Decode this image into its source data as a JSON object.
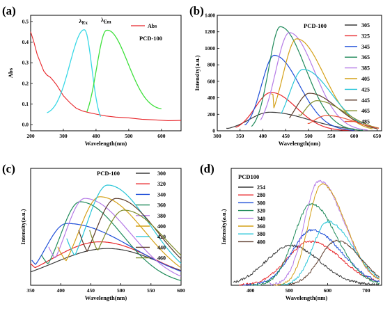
{
  "figure": {
    "panels": [
      "(a)",
      "(b)",
      "(c)",
      "(d)"
    ]
  },
  "chart_data": [
    {
      "id": "a",
      "type": "line",
      "panel_label": "(a)",
      "title": "",
      "sample_label": "PCD-100",
      "xlabel": "Wavelength(nm)",
      "ylabel": "Abs",
      "xlim": [
        200,
        660
      ],
      "ylim": [
        -0.03,
        0.53
      ],
      "xticks": [
        200,
        300,
        400,
        500,
        600
      ],
      "yticks": [
        0.0,
        0.1,
        0.2,
        0.3,
        0.4,
        0.5
      ],
      "ytick_labels": [
        "0.0",
        "0.1",
        "0.2",
        "0.3",
        "0.4",
        "0.5"
      ],
      "legend": [
        "Abs"
      ],
      "legend_position": "top-right",
      "annotations": [
        {
          "text": "λ",
          "sub": "Ex",
          "color": "#000000",
          "x": 365,
          "y": 0.49
        },
        {
          "text": "λ",
          "sub": "Em",
          "color": "#000000",
          "x": 432,
          "y": 0.495
        }
      ],
      "series": [
        {
          "name": "Abs",
          "color": "#e8252a",
          "kind": "abs",
          "points": [
            [
              200,
              0.45
            ],
            [
              210,
              0.4
            ],
            [
              220,
              0.34
            ],
            [
              230,
              0.3
            ],
            [
              240,
              0.26
            ],
            [
              250,
              0.24
            ],
            [
              260,
              0.23
            ],
            [
              270,
              0.21
            ],
            [
              280,
              0.19
            ],
            [
              290,
              0.165
            ],
            [
              300,
              0.14
            ],
            [
              320,
              0.105
            ],
            [
              340,
              0.08
            ],
            [
              360,
              0.066
            ],
            [
              380,
              0.057
            ],
            [
              400,
              0.05
            ],
            [
              430,
              0.043
            ],
            [
              460,
              0.037
            ],
            [
              500,
              0.031
            ],
            [
              540,
              0.026
            ],
            [
              580,
              0.022
            ],
            [
              620,
              0.02
            ],
            [
              660,
              0.019
            ]
          ]
        },
        {
          "kind": "ex",
          "color": "#39d8e6",
          "center": 365,
          "amp": 0.47,
          "x_start": 250,
          "x_end": 415,
          "base": 0.04,
          "w_left": 45,
          "w_right": 22
        },
        {
          "kind": "em",
          "color": "#3ee03b",
          "center": 432,
          "amp": 0.475,
          "x_start": 372,
          "x_end": 600,
          "base": 0.06,
          "w_left": 30,
          "w_right": 65
        }
      ]
    },
    {
      "id": "b",
      "type": "line",
      "panel_label": "(b)",
      "title": "",
      "legend_title": "PCD-100",
      "xlabel": "Wavelength(nm)",
      "ylabel": "Intensity(a.u.)",
      "xlim": [
        300,
        660
      ],
      "ylim": [
        0,
        1400
      ],
      "xticks": [
        300,
        350,
        400,
        450,
        500,
        550,
        600,
        650
      ],
      "yticks": [
        0,
        200,
        400,
        600,
        800,
        1000,
        1200,
        1400
      ],
      "legend_position": "top-right",
      "series": [
        {
          "name": "305",
          "color": "#3a3a3a",
          "start": 320,
          "end": 600,
          "peak": 415,
          "amp": 225,
          "wl": 45,
          "wr": 85,
          "base": 20
        },
        {
          "name": "325",
          "color": "#e8252a",
          "start": 340,
          "end": 600,
          "peak": 418,
          "amp": 465,
          "wl": 35,
          "wr": 55,
          "base": 30
        },
        {
          "name": "345",
          "color": "#1f4fd8",
          "start": 360,
          "end": 600,
          "peak": 425,
          "amp": 915,
          "wl": 28,
          "wr": 55,
          "base": 50
        },
        {
          "name": "365",
          "color": "#1f8a5a",
          "start": 375,
          "end": 620,
          "peak": 438,
          "amp": 1262,
          "wl": 25,
          "wr": 55,
          "base": 30
        },
        {
          "name": "385",
          "color": "#b57be6",
          "start": 395,
          "end": 630,
          "peak": 458,
          "amp": 1190,
          "wl": 30,
          "wr": 55,
          "base": 60
        },
        {
          "name": "405",
          "color": "#d4a017",
          "start": 418,
          "end": 640,
          "peak": 474,
          "amp": 1115,
          "wl": 30,
          "wr": 60,
          "base": 300
        },
        {
          "name": "425",
          "color": "#27c5d8",
          "start": 440,
          "end": 640,
          "peak": 488,
          "amp": 745,
          "wl": 30,
          "wr": 62,
          "base": 120
        },
        {
          "name": "445",
          "color": "#5a3a2a",
          "start": 458,
          "end": 650,
          "peak": 502,
          "amp": 455,
          "wl": 30,
          "wr": 62,
          "base": 60
        },
        {
          "name": "465",
          "color": "#7f8c2a",
          "start": 478,
          "end": 655,
          "peak": 518,
          "amp": 365,
          "wl": 30,
          "wr": 62,
          "base": 130
        },
        {
          "name": "485",
          "color": "#e8563a",
          "start": 498,
          "end": 655,
          "peak": 540,
          "amp": 185,
          "wl": 32,
          "wr": 60,
          "base": 60
        }
      ]
    },
    {
      "id": "c",
      "type": "line",
      "panel_label": "(c)",
      "title": "",
      "legend_title": "PCD-100",
      "xlabel": "Wavelength(nm)",
      "ylabel": "Intensity(a.u.)",
      "xlim": [
        350,
        600
      ],
      "xticks": [
        350,
        400,
        450,
        500,
        550,
        600
      ],
      "legend_position": "top-right",
      "series": [
        {
          "name": "300",
          "color": "#3a3a3a",
          "peak": 478,
          "amp": 0.22,
          "wl": 90,
          "wr": 90,
          "base": 0.03,
          "start": 350
        },
        {
          "name": "320",
          "color": "#e8252a",
          "peak": 465,
          "amp": 0.26,
          "wl": 80,
          "wr": 90,
          "base": 0.1,
          "start": 350
        },
        {
          "name": "340",
          "color": "#1f4fd8",
          "peak": 410,
          "amp": 0.37,
          "wl": 35,
          "wr": 110,
          "base": 0.12,
          "start": 352
        },
        {
          "name": "360",
          "color": "#1f8a5a",
          "peak": 432,
          "amp": 0.5,
          "wl": 32,
          "wr": 70,
          "base": 0.15,
          "start": 368
        },
        {
          "name": "380",
          "color": "#b57be6",
          "peak": 440,
          "amp": 0.52,
          "wl": 32,
          "wr": 75,
          "base": 0.2,
          "start": 380
        },
        {
          "name": "400",
          "color": "#d4a017",
          "peak": 465,
          "amp": 0.53,
          "wl": 35,
          "wr": 75,
          "base": 0.2,
          "start": 395
        },
        {
          "name": "420",
          "color": "#27c5d8",
          "peak": 478,
          "amp": 0.6,
          "wl": 35,
          "wr": 70,
          "base": 0.25,
          "start": 410
        },
        {
          "name": "440",
          "color": "#5a3a2a",
          "peak": 492,
          "amp": 0.52,
          "wl": 35,
          "wr": 70,
          "base": 0.3,
          "start": 430
        },
        {
          "name": "460",
          "color": "#7f8c2a",
          "peak": 505,
          "amp": 0.45,
          "wl": 35,
          "wr": 70,
          "base": 0.3,
          "start": 448
        }
      ]
    },
    {
      "id": "d",
      "type": "line",
      "panel_label": "(d)",
      "title": "",
      "legend_title": "PCD100",
      "xlabel": "Wavelength(nm)",
      "ylabel": "Intensity(a.u.)",
      "xlim": [
        350,
        740
      ],
      "xticks": [
        400,
        500,
        600,
        700
      ],
      "legend_position": "top-left",
      "series": [
        {
          "name": "254",
          "color": "#3a3a3a",
          "peak": 505,
          "amp": 0.38,
          "wl": 65,
          "wr": 75,
          "start": 355,
          "end": 735,
          "noise": 0.012
        },
        {
          "name": "280",
          "color": "#e8252a",
          "peak": 555,
          "amp": 0.42,
          "wl": 60,
          "wr": 80,
          "start": 370,
          "end": 735,
          "noise": 0.01
        },
        {
          "name": "300",
          "color": "#1f4fd8",
          "peak": 560,
          "amp": 0.53,
          "wl": 52,
          "wr": 75,
          "start": 380,
          "end": 735,
          "noise": 0.012
        },
        {
          "name": "320",
          "color": "#1f8a5a",
          "peak": 558,
          "amp": 0.78,
          "wl": 45,
          "wr": 65,
          "start": 400,
          "end": 735,
          "noise": 0.012
        },
        {
          "name": "340",
          "color": "#b57be6",
          "peak": 578,
          "amp": 1.0,
          "wl": 38,
          "wr": 65,
          "start": 450,
          "end": 735,
          "noise": 0.015
        },
        {
          "name": "360",
          "color": "#d4a017",
          "peak": 585,
          "amp": 0.97,
          "wl": 35,
          "wr": 62,
          "start": 460,
          "end": 735,
          "noise": 0.01
        },
        {
          "name": "380",
          "color": "#27c5d8",
          "peak": 600,
          "amp": 0.61,
          "wl": 38,
          "wr": 65,
          "start": 480,
          "end": 735,
          "noise": 0.01
        },
        {
          "name": "400",
          "color": "#5a3a2a",
          "peak": 625,
          "amp": 0.43,
          "wl": 45,
          "wr": 60,
          "start": 500,
          "end": 735,
          "noise": 0.008
        }
      ]
    }
  ]
}
